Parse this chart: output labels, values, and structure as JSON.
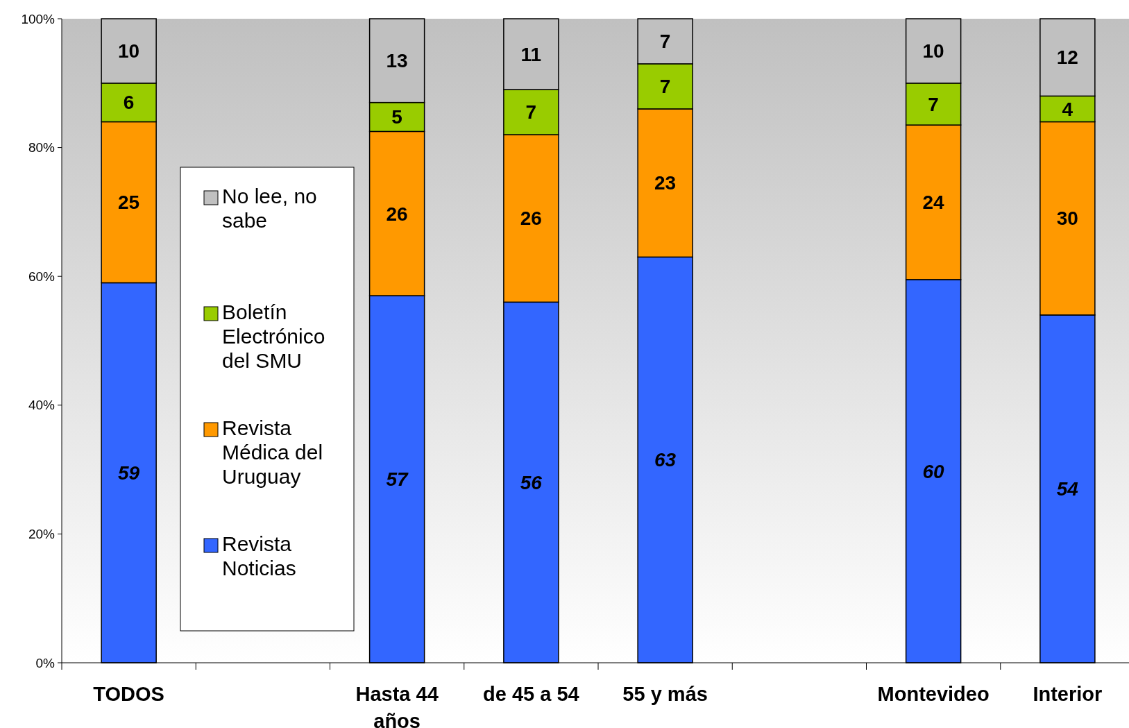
{
  "chart_data": {
    "type": "bar",
    "stacked": true,
    "categories": [
      "TODOS",
      null,
      "Hasta 44 años",
      "de 45 a 54",
      "55 y más",
      null,
      "Montevideo",
      "Interior"
    ],
    "series": [
      {
        "name": "Revista Noticias",
        "color": "#3366ff",
        "values": [
          59,
          null,
          57,
          56,
          63,
          null,
          59.5,
          54
        ],
        "value_labels": [
          "59",
          null,
          "57",
          "56",
          "63",
          null,
          "60",
          "54"
        ]
      },
      {
        "name": "Revista Médica del Uruguay",
        "color": "#ff9900",
        "values": [
          25,
          null,
          25.5,
          26,
          23,
          null,
          24,
          30
        ],
        "value_labels": [
          "25",
          null,
          "26",
          "26",
          "23",
          null,
          "24",
          "30"
        ]
      },
      {
        "name": "Boletín Electrónico del SMU",
        "color": "#99cc00",
        "values": [
          6,
          null,
          4.5,
          7,
          7,
          null,
          6.5,
          4
        ],
        "value_labels": [
          "6",
          null,
          "5",
          "7",
          "7",
          null,
          "7",
          "4"
        ]
      },
      {
        "name": "No lee, no sabe",
        "color": "#c0c0c0",
        "values": [
          10,
          null,
          13,
          11,
          7,
          null,
          10,
          12
        ],
        "value_labels": [
          "10",
          null,
          "13",
          "11",
          "7",
          null,
          "10",
          "12"
        ]
      }
    ],
    "ylim": [
      0,
      100
    ],
    "yticks": [
      {
        "value": 0,
        "label": "0%"
      },
      {
        "value": 20,
        "label": "20%"
      },
      {
        "value": 40,
        "label": "40%"
      },
      {
        "value": 60,
        "label": "60%"
      },
      {
        "value": 80,
        "label": "80%"
      },
      {
        "value": 100,
        "label": "100%"
      }
    ],
    "legend": "left",
    "grid": false
  }
}
